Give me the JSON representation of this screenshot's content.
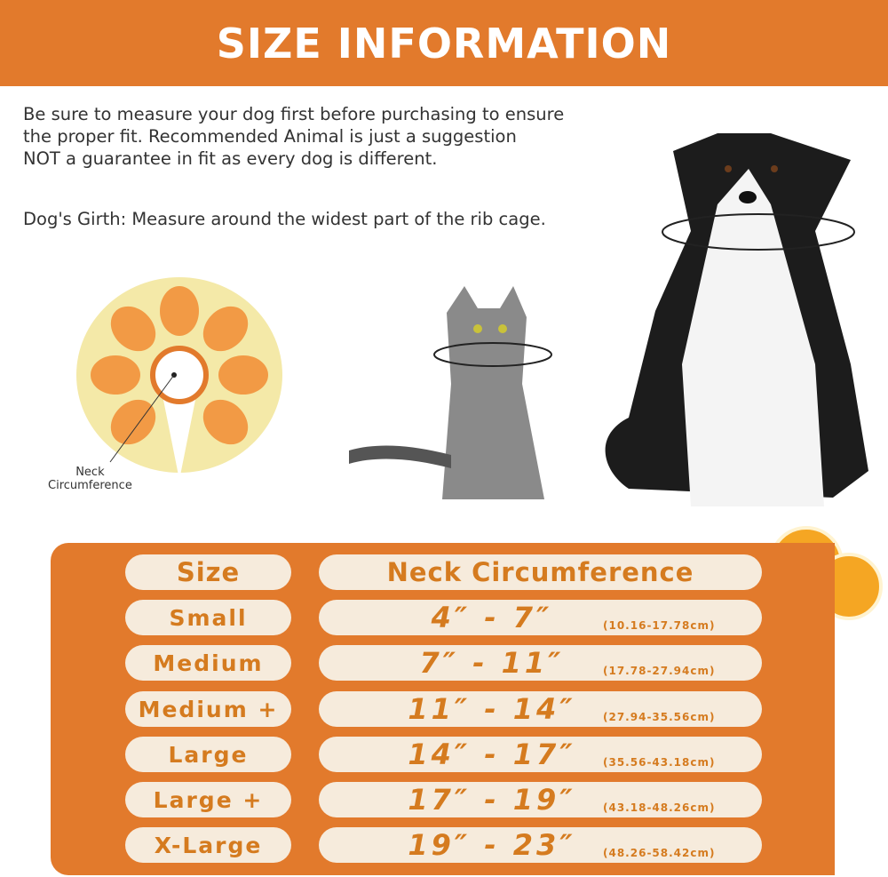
{
  "header": {
    "title": "SIZE INFORMATION"
  },
  "intro": {
    "text": "Be sure to measure your dog first before purchasing to ensure\nthe proper fit. Recommended Animal is just a suggestion\nNOT a guarantee in fit as every dog is different.",
    "girth": "Dog's Girth: Measure around the widest part of the rib cage."
  },
  "collar": {
    "label": "Neck\nCircumference"
  },
  "colors": {
    "accent": "#e27a2c",
    "pill": "#f6ebdc",
    "pill_text": "#d57b1f"
  },
  "table": {
    "headers": {
      "size": "Size",
      "neck": "Neck Circumference"
    },
    "rows": [
      {
        "size": "Small",
        "inches": "4″ - 7″",
        "cm": "(10.16-17.78cm)"
      },
      {
        "size": "Medium",
        "inches": "7″ - 11″",
        "cm": "(17.78-27.94cm)"
      },
      {
        "size": "Medium +",
        "inches": "11″ - 14″",
        "cm": "(27.94-35.56cm)"
      },
      {
        "size": "Large",
        "inches": "14″ - 17″",
        "cm": "(35.56-43.18cm)"
      },
      {
        "size": "Large +",
        "inches": "17″ - 19″",
        "cm": "(43.18-48.26cm)"
      },
      {
        "size": "X-Large",
        "inches": "19″ - 23″",
        "cm": "(48.26-58.42cm)"
      }
    ]
  }
}
